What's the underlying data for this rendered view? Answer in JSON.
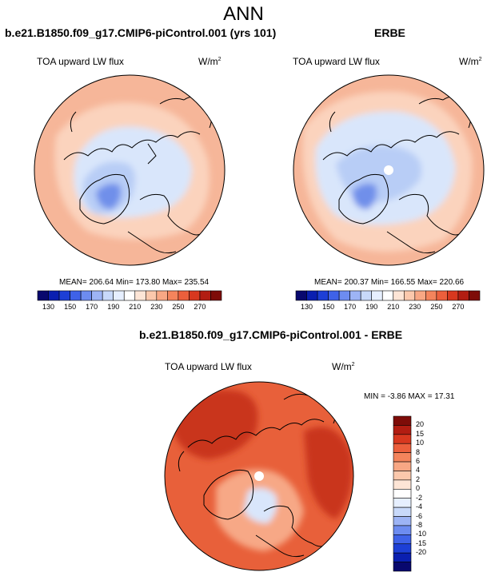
{
  "season": "ANN",
  "panel_left": {
    "title": "b.e21.B1850.f09_g17.CMIP6-piControl.001 (yrs 101)",
    "variable": "TOA upward LW flux",
    "units_base": "W/m",
    "units_exp": "2",
    "stats": "MEAN= 206.64  Min= 173.80  Max= 235.54"
  },
  "panel_right": {
    "title": "ERBE",
    "variable": "TOA upward LW flux",
    "units_base": "W/m",
    "units_exp": "2",
    "stats": "MEAN= 200.37  Min= 166.55  Max= 220.66"
  },
  "panel_diff": {
    "title": "b.e21.B1850.f09_g17.CMIP6-piControl.001 - ERBE",
    "variable": "TOA upward LW flux",
    "units_base": "W/m",
    "units_exp": "2",
    "minmax": "MIN =  -3.86 MAX =  17.31"
  },
  "colorbar_abs": {
    "colors": [
      "#08086e",
      "#0a1fb0",
      "#1d3fd6",
      "#3f62e8",
      "#6d8cf0",
      "#9db4f5",
      "#c8d9fa",
      "#e6efff",
      "#ffffff",
      "#fde5d6",
      "#fbc8ac",
      "#f8a784",
      "#f4845c",
      "#ec5f3c",
      "#d8381f",
      "#b21d12",
      "#7e0c08"
    ],
    "ticks": [
      "130",
      "150",
      "170",
      "190",
      "210",
      "230",
      "250",
      "270"
    ]
  },
  "colorbar_diff": {
    "colors": [
      "#7e0c08",
      "#b21d12",
      "#d8381f",
      "#ec5f3c",
      "#f4845c",
      "#f8a784",
      "#fbc8ac",
      "#fde5d6",
      "#ffffff",
      "#e6efff",
      "#c8d9fa",
      "#9db4f5",
      "#6d8cf0",
      "#3f62e8",
      "#1d3fd6",
      "#0a1fb0",
      "#08086e"
    ],
    "ticks": [
      "20",
      "15",
      "10",
      "8",
      "6",
      "4",
      "2",
      "0",
      "-2",
      "-4",
      "-6",
      "-8",
      "-10",
      "-15",
      "-20"
    ]
  },
  "colors": {
    "ocean_warm": "#f6b699",
    "ocean_mid": "#fbd3bd",
    "arctic_light": "#d9e6fb",
    "arctic_mid": "#b8cdf6",
    "greenland_core": "#6f8fea",
    "diff_base": "#e8603a",
    "diff_hot": "#c9341a",
    "diff_light": "#f7a886",
    "coast": "#000000"
  }
}
